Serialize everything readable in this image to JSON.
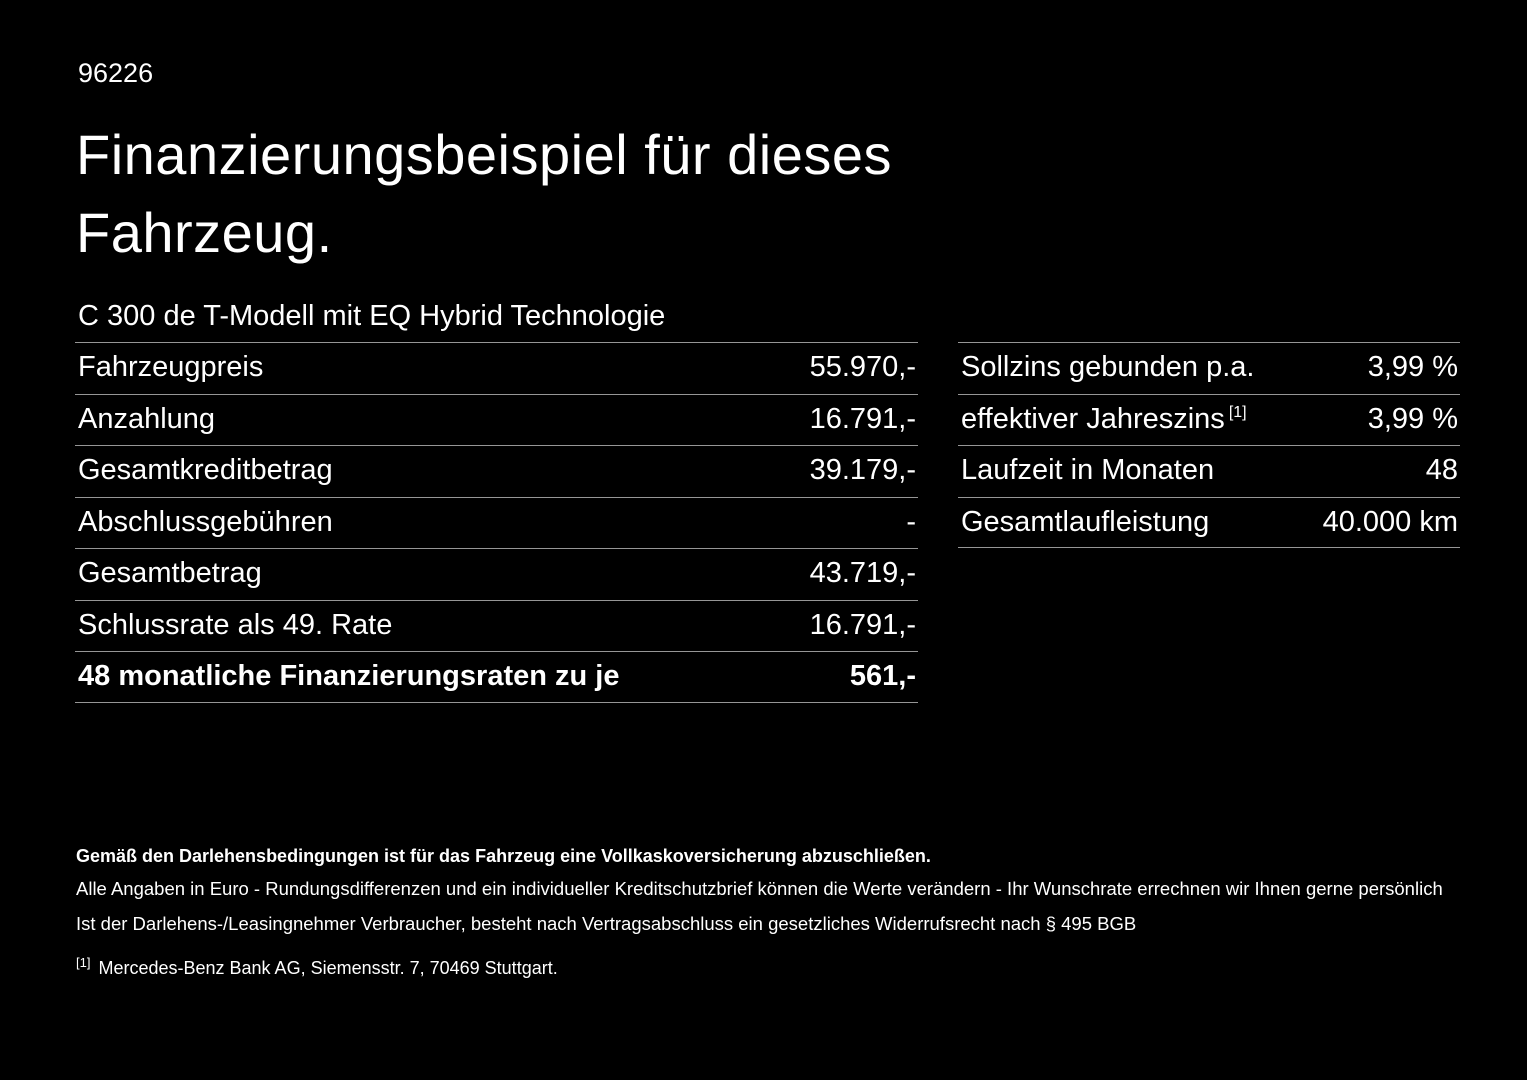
{
  "page": {
    "id_number": "96226",
    "title_line1": "Finanzierungsbeispiel für dieses",
    "title_line2": "Fahrzeug.",
    "subtitle": "C 300 de T-Modell mit EQ Hybrid Technologie"
  },
  "left_table": {
    "rows": [
      {
        "label": "Fahrzeugpreis",
        "value": "55.970,-"
      },
      {
        "label": "Anzahlung",
        "value": "16.791,-"
      },
      {
        "label": "Gesamtkreditbetrag",
        "value": "39.179,-"
      },
      {
        "label": "Abschlussgebühren",
        "value": "-"
      },
      {
        "label": "Gesamtbetrag",
        "value": "43.719,-"
      },
      {
        "label": "Schlussrate als 49. Rate",
        "value": "16.791,-"
      },
      {
        "label": "48 monatliche Finanzierungsraten zu je",
        "value": "561,-"
      }
    ]
  },
  "right_table": {
    "rows": [
      {
        "label": "Sollzins gebunden p.a.",
        "value": "3,99 %"
      },
      {
        "label": "effektiver Jahreszins",
        "superscript": "[1]",
        "value": "3,99 %"
      },
      {
        "label": "Laufzeit in Monaten",
        "value": "48"
      },
      {
        "label": "Gesamtlaufleistung",
        "value": "40.000 km"
      }
    ]
  },
  "footnotes": {
    "bold_note": "Gemäß den Darlehensbedingungen ist für das Fahrzeug eine Vollkaskoversicherung abzuschließen.",
    "note1": "Alle Angaben in Euro - Rundungsdifferenzen und ein individueller Kreditschutzbrief können die Werte verändern - Ihr Wunschrate errechnen wir Ihnen gerne persönlich",
    "note2": "Ist der Darlehens-/Leasingnehmer Verbraucher, besteht nach Vertragsabschluss ein gesetzliches Widerrufsrecht nach § 495 BGB",
    "reference_marker": "[1]",
    "reference_text": "Mercedes-Benz Bank AG, Siemensstr. 7, 70469 Stuttgart."
  },
  "colors": {
    "background": "#000000",
    "text": "#ffffff",
    "line": "#969696"
  }
}
